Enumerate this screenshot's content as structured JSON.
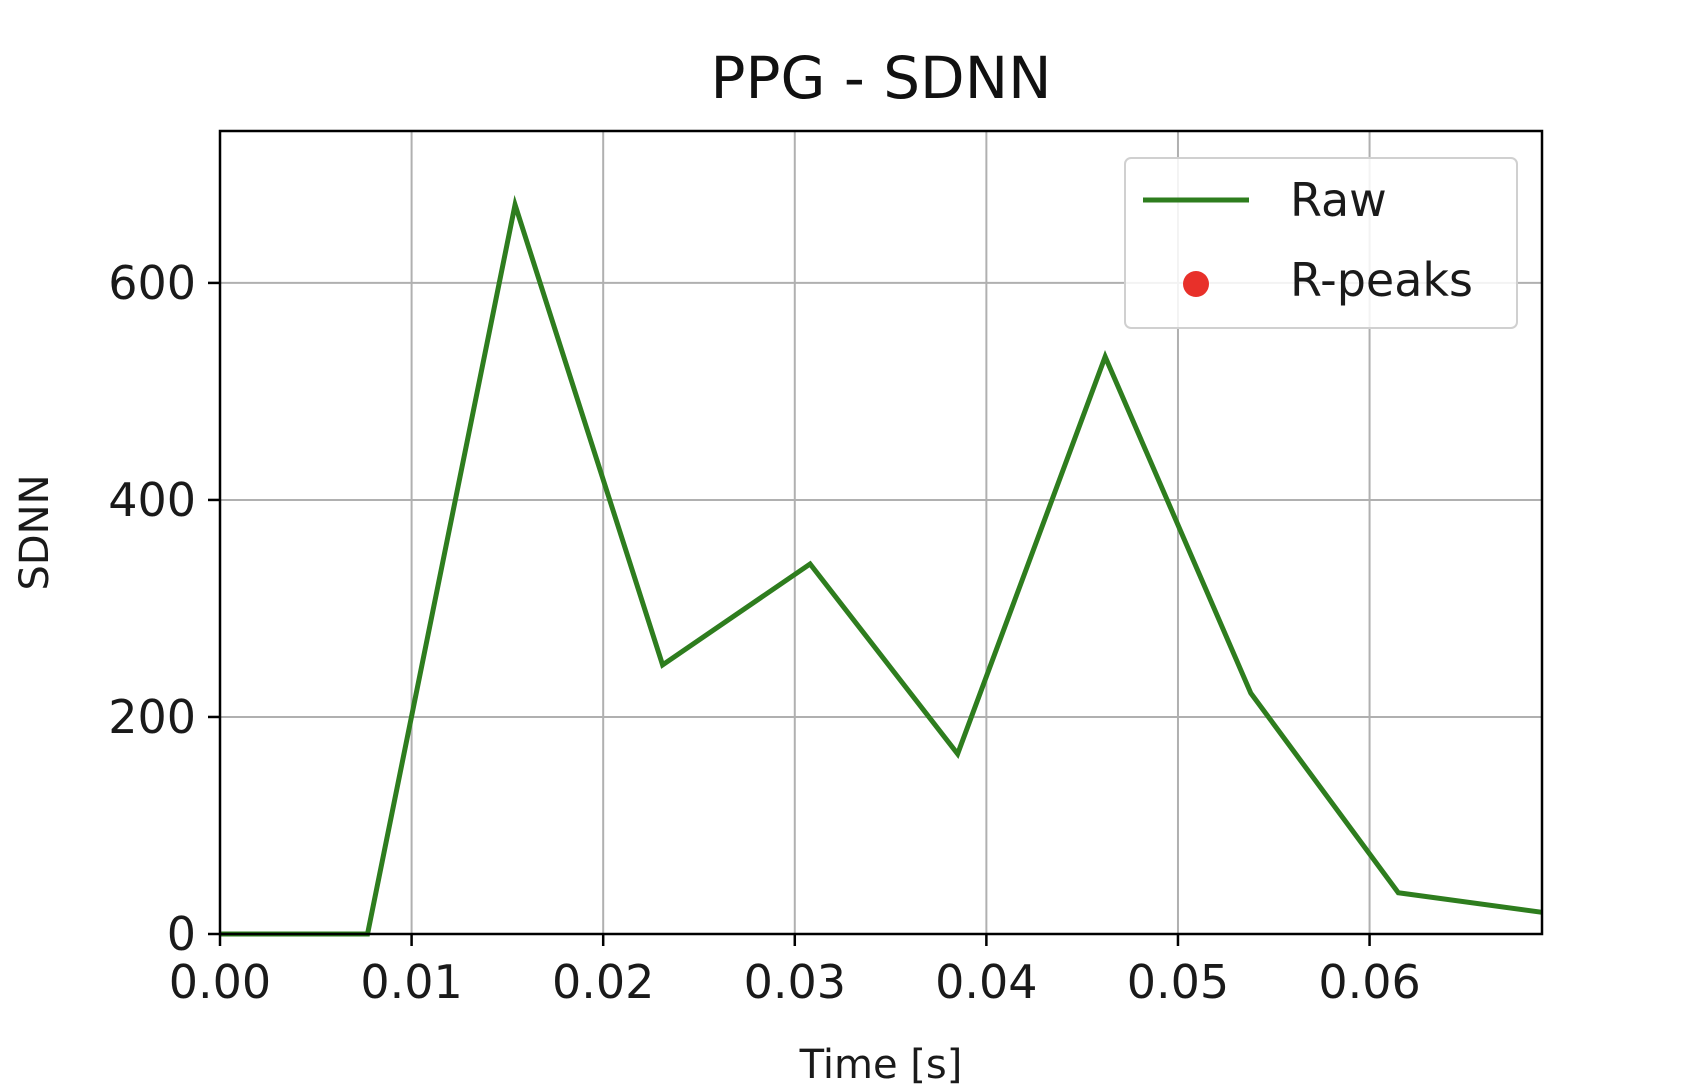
{
  "chart_data": {
    "type": "line",
    "title": "PPG - SDNN",
    "xlabel": "Time [s]",
    "ylabel": "SDNN",
    "xlim": [
      0,
      0.069
    ],
    "ylim": [
      0,
      740
    ],
    "xticks": [
      0.0,
      0.01,
      0.02,
      0.03,
      0.04,
      0.05,
      0.06
    ],
    "xtick_labels": [
      "0.00",
      "0.01",
      "0.02",
      "0.03",
      "0.04",
      "0.05",
      "0.06"
    ],
    "yticks": [
      0,
      200,
      400,
      600
    ],
    "ytick_labels": [
      "0",
      "200",
      "400",
      "600"
    ],
    "grid": true,
    "legend_placement": "top-right",
    "series": [
      {
        "name": "Raw",
        "type": "line",
        "color": "#2e7d1e",
        "x": [
          0.0,
          0.0077,
          0.0154,
          0.0231,
          0.0308,
          0.0385,
          0.0462,
          0.0538,
          0.0615,
          0.069
        ],
        "y": [
          0,
          0,
          672,
          248,
          341,
          166,
          532,
          222,
          38,
          20
        ]
      },
      {
        "name": "R-peaks",
        "type": "scatter",
        "color": "#e8302a",
        "x": [],
        "y": []
      }
    ]
  }
}
